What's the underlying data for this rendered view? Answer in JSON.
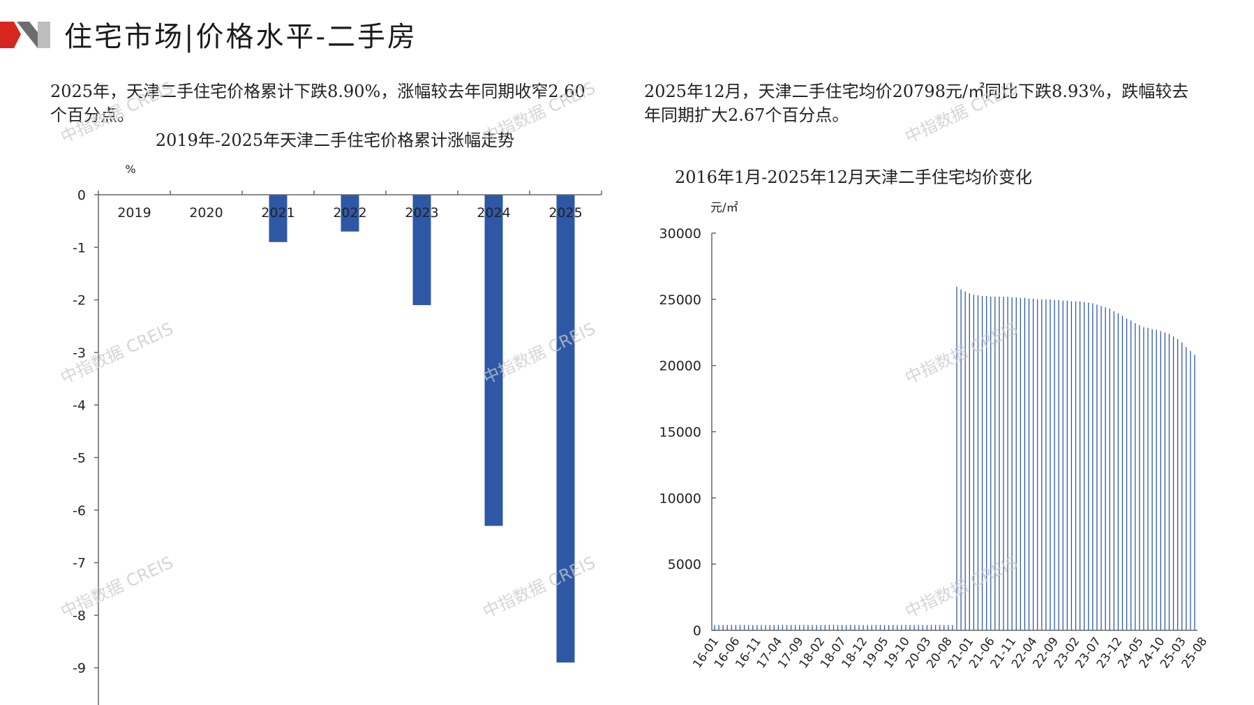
{
  "header": {
    "title": "住宅市场|价格水平-二手房",
    "logo_colors": [
      "#d7261e",
      "#6d6d6d",
      "#bdbdbd"
    ]
  },
  "left_text": "2025年，天津二手住宅价格累计下跌8.90%，涨幅较去年同期收窄2.60个百分点。",
  "right_text": "2025年12月，天津二手住宅均价20798元/㎡同比下跌8.93%，跌幅较去年同期扩大2.67个百分点。",
  "watermark": "中指数据 CREIS",
  "chart_data": [
    {
      "type": "bar",
      "title": "2019年-2025年天津二手住宅价格累计涨幅走势",
      "ylabel": "%",
      "categories": [
        "2019",
        "2020",
        "2021",
        "2022",
        "2023",
        "2024",
        "2025"
      ],
      "values": [
        0,
        0,
        -0.9,
        -0.7,
        -2.1,
        -6.3,
        -8.9
      ],
      "ylim": [
        -9.8,
        0
      ],
      "yticks": [
        0,
        -1,
        -2,
        -3,
        -4,
        -5,
        -6,
        -7,
        -8,
        -9
      ],
      "color": "#2e58a6",
      "grid": false
    },
    {
      "type": "bar",
      "title": "2016年1月-2025年12月天津二手住宅均价变化",
      "ylabel": "元/㎡",
      "ylim": [
        0,
        30000
      ],
      "yticks": [
        0,
        5000,
        10000,
        15000,
        20000,
        25000,
        30000
      ],
      "tick_labels": [
        "16-01",
        "16-06",
        "16-11",
        "17-04",
        "17-09",
        "18-02",
        "18-07",
        "18-12",
        "19-05",
        "19-10",
        "20-03",
        "20-08",
        "21-01",
        "21-06",
        "21-11",
        "22-04",
        "22-09",
        "23-02",
        "23-07",
        "23-12",
        "24-05",
        "24-10",
        "25-03",
        "25-08"
      ],
      "color": "#2e58a6",
      "grid": false,
      "note_start": "2016-01",
      "monthly_values": [
        400,
        400,
        400,
        400,
        400,
        400,
        400,
        400,
        400,
        400,
        400,
        400,
        400,
        400,
        400,
        400,
        400,
        400,
        400,
        400,
        400,
        400,
        400,
        400,
        400,
        400,
        400,
        400,
        400,
        400,
        400,
        400,
        400,
        400,
        400,
        400,
        400,
        400,
        400,
        400,
        400,
        400,
        400,
        400,
        400,
        400,
        400,
        400,
        400,
        400,
        400,
        400,
        400,
        400,
        400,
        400,
        400,
        25950,
        25750,
        25600,
        25450,
        25350,
        25300,
        25250,
        25250,
        25200,
        25200,
        25200,
        25200,
        25200,
        25150,
        25150,
        25100,
        25100,
        25050,
        25050,
        25000,
        25000,
        25000,
        25000,
        24950,
        24950,
        24900,
        24900,
        24850,
        24850,
        24850,
        24800,
        24750,
        24700,
        24600,
        24500,
        24400,
        24300,
        24100,
        23950,
        23750,
        23550,
        23400,
        23200,
        23050,
        22900,
        22850,
        22750,
        22700,
        22600,
        22500,
        22400,
        22200,
        22000,
        21750,
        21400,
        21100,
        20798
      ]
    }
  ]
}
